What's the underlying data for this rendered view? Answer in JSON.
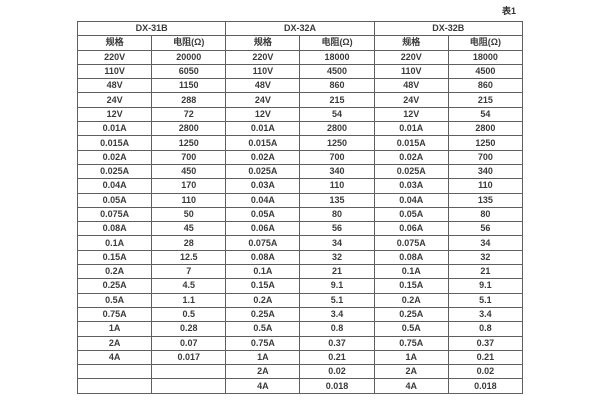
{
  "table": {
    "caption": "表1",
    "groups": [
      {
        "name": "DX-31B"
      },
      {
        "name": "DX-32A"
      },
      {
        "name": "DX-32B"
      }
    ],
    "sub_headers": [
      "规格",
      "电阻(Ω)",
      "规格",
      "电阻(Ω)",
      "规格",
      "电阻(Ω)"
    ],
    "rows": [
      [
        "220V",
        "20000",
        "220V",
        "18000",
        "220V",
        "18000"
      ],
      [
        "110V",
        "6050",
        "110V",
        "4500",
        "110V",
        "4500"
      ],
      [
        "48V",
        "1150",
        "48V",
        "860",
        "48V",
        "860"
      ],
      [
        "24V",
        "288",
        "24V",
        "215",
        "24V",
        "215"
      ],
      [
        "12V",
        "72",
        "12V",
        "54",
        "12V",
        "54"
      ],
      [
        "0.01A",
        "2800",
        "0.01A",
        "2800",
        "0.01A",
        "2800"
      ],
      [
        "0.015A",
        "1250",
        "0.015A",
        "1250",
        "0.015A",
        "1250"
      ],
      [
        "0.02A",
        "700",
        "0.02A",
        "700",
        "0.02A",
        "700"
      ],
      [
        "0.025A",
        "450",
        "0.025A",
        "340",
        "0.025A",
        "340"
      ],
      [
        "0.04A",
        "170",
        "0.03A",
        "110",
        "0.03A",
        "110"
      ],
      [
        "0.05A",
        "110",
        "0.04A",
        "135",
        "0.04A",
        "135"
      ],
      [
        "0.075A",
        "50",
        "0.05A",
        "80",
        "0.05A",
        "80"
      ],
      [
        "0.08A",
        "45",
        "0.06A",
        "56",
        "0.06A",
        "56"
      ],
      [
        "0.1A",
        "28",
        "0.075A",
        "34",
        "0.075A",
        "34"
      ],
      [
        "0.15A",
        "12.5",
        "0.08A",
        "32",
        "0.08A",
        "32"
      ],
      [
        "0.2A",
        "7",
        "0.1A",
        "21",
        "0.1A",
        "21"
      ],
      [
        "0.25A",
        "4.5",
        "0.15A",
        "9.1",
        "0.15A",
        "9.1"
      ],
      [
        "0.5A",
        "1.1",
        "0.2A",
        "5.1",
        "0.2A",
        "5.1"
      ],
      [
        "0.75A",
        "0.5",
        "0.25A",
        "3.4",
        "0.25A",
        "3.4"
      ],
      [
        "1A",
        "0.28",
        "0.5A",
        "0.8",
        "0.5A",
        "0.8"
      ],
      [
        "2A",
        "0.07",
        "0.75A",
        "0.37",
        "0.75A",
        "0.37"
      ],
      [
        "4A",
        "0.017",
        "1A",
        "0.21",
        "1A",
        "0.21"
      ],
      [
        "",
        "",
        "2A",
        "0.02",
        "2A",
        "0.02"
      ],
      [
        "",
        "",
        "4A",
        "0.018",
        "4A",
        "0.018"
      ]
    ]
  }
}
